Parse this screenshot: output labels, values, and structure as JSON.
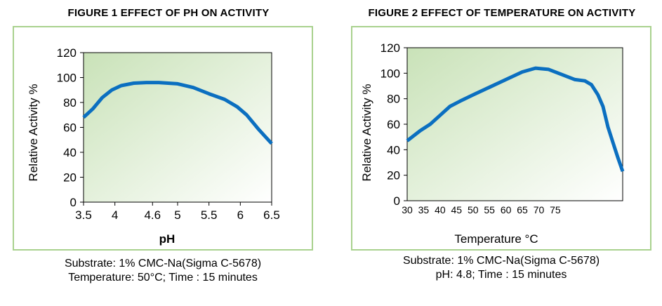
{
  "figure1": {
    "title": "FIGURE 1 EFFECT OF PH ON ACTIVITY",
    "chart_data": {
      "type": "line",
      "xlabel": "pH",
      "ylabel": "Relative Activity %",
      "xlim": [
        3.5,
        6.5
      ],
      "ylim": [
        0,
        120
      ],
      "x_ticks": [
        3.5,
        4,
        4.6,
        5,
        5.5,
        6,
        6.5
      ],
      "x_tick_labels": [
        "3.5",
        "4",
        "4.6",
        "5",
        "5.5",
        "6",
        "6.5"
      ],
      "y_ticks": [
        0,
        20,
        40,
        60,
        80,
        100,
        120
      ],
      "y_tick_labels": [
        "0",
        "20",
        "40",
        "60",
        "80",
        "100",
        "120"
      ],
      "grid": false,
      "series": [
        {
          "x": [
            3.5,
            3.65,
            3.8,
            3.95,
            4.1,
            4.3,
            4.5,
            4.7,
            5.0,
            5.25,
            5.5,
            5.75,
            5.95,
            6.1,
            6.3,
            6.5
          ],
          "y": [
            68,
            75,
            84,
            90,
            93.5,
            95.5,
            96,
            96,
            95,
            92,
            87,
            82.5,
            76.5,
            70,
            58,
            47
          ]
        }
      ]
    },
    "notes": [
      "Substrate: 1% CMC-Na(Sigma C-5678)",
      "Temperature: 50°C; Time : 15 minutes"
    ]
  },
  "figure2": {
    "title": "FIGURE 2 EFFECT OF TEMPERATURE ON ACTIVITY",
    "chart_data": {
      "type": "line",
      "xlabel": "Temperature °C",
      "ylabel": "Relative Activity %",
      "xlim": [
        30,
        95.5
      ],
      "ylim": [
        0,
        120
      ],
      "x_ticks": [
        30,
        35,
        40,
        45,
        50,
        55,
        60,
        65,
        70,
        75
      ],
      "x_tick_labels": [
        "30",
        "35",
        "40",
        "45",
        "50",
        "55",
        "60",
        "65",
        "70",
        "75"
      ],
      "y_ticks": [
        0,
        20,
        40,
        60,
        80,
        100,
        120
      ],
      "y_tick_labels": [
        "0",
        "20",
        "40",
        "60",
        "80",
        "100",
        "120"
      ],
      "grid": false,
      "series": [
        {
          "x": [
            30,
            34,
            37,
            40,
            43,
            46,
            50,
            55,
            60,
            65,
            69,
            73,
            77,
            81,
            84,
            86,
            88,
            89.5,
            91,
            92.5,
            94,
            95.5
          ],
          "y": [
            47,
            55,
            60,
            67,
            74,
            78,
            83,
            89,
            95,
            101,
            104,
            103,
            99,
            95,
            94,
            91,
            83,
            74,
            58,
            46,
            34,
            23
          ]
        }
      ]
    },
    "notes": [
      "Substrate: 1% CMC-Na(Sigma C-5678)",
      "pH: 4.8; Time : 15 minutes"
    ]
  },
  "colors": {
    "line": "#0b6fc0",
    "frame": "#a9d18e",
    "plot_gradient_start": "#c9e2b8",
    "plot_gradient_end": "#ffffff"
  }
}
